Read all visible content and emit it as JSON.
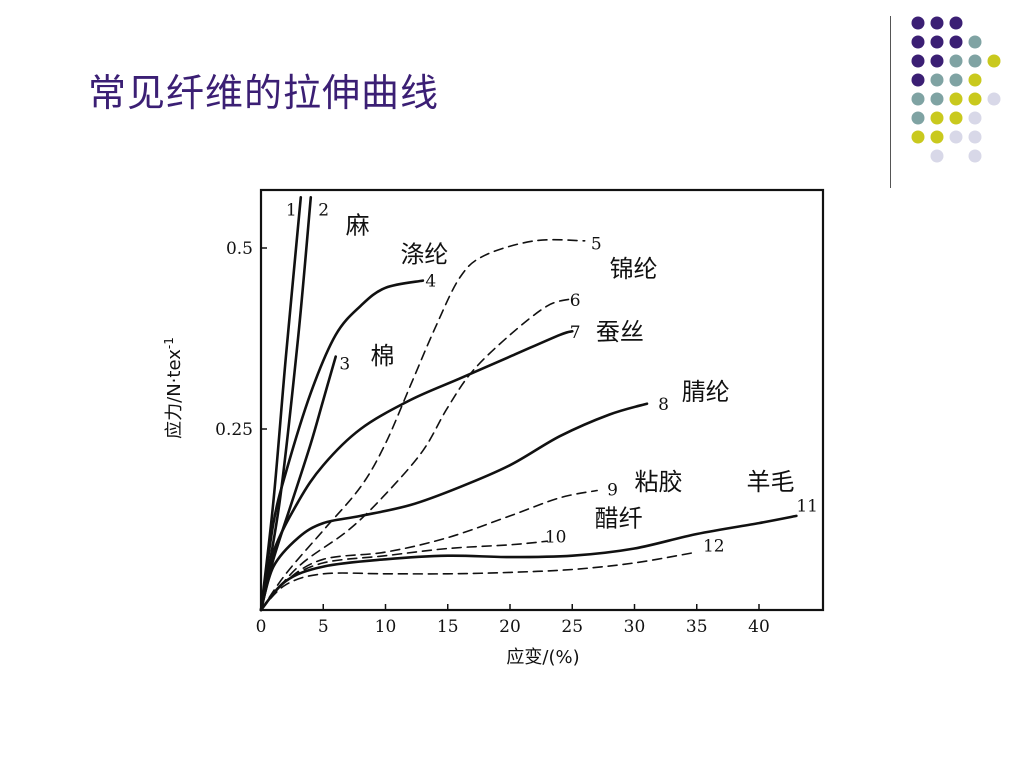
{
  "slide": {
    "title": "常见纤维的拉伸曲线"
  },
  "decor": {
    "dot_colors": [
      "#3b1f74",
      "#7fa3a3",
      "#c9c91e",
      "#d8d8e8"
    ]
  },
  "chart_data": {
    "type": "line",
    "xlabel": "应变/(%)",
    "ylabel": "应力/N·tex",
    "ylabel_sup": "-1",
    "xlim": [
      0,
      45
    ],
    "ylim": [
      0,
      0.57
    ],
    "x_ticks": [
      {
        "value": 0,
        "label": "0"
      },
      {
        "value": 5,
        "label": "5"
      },
      {
        "value": 10,
        "label": "10"
      },
      {
        "value": 15,
        "label": "15"
      },
      {
        "value": 20,
        "label": "20"
      },
      {
        "value": 25,
        "label": "25"
      },
      {
        "value": 30,
        "label": "30"
      },
      {
        "value": 35,
        "label": "35"
      },
      {
        "value": 40,
        "label": "40"
      }
    ],
    "y_ticks": [
      {
        "value": 0.25,
        "label": "0.25"
      },
      {
        "value": 0.5,
        "label": "0.5"
      }
    ],
    "grid": false,
    "series": [
      {
        "id": "1",
        "fiber": "",
        "style": "solid",
        "points": [
          [
            0,
            0
          ],
          [
            1,
            0.15
          ],
          [
            2,
            0.35
          ],
          [
            3.2,
            0.57
          ]
        ]
      },
      {
        "id": "2",
        "fiber": "麻",
        "style": "solid",
        "points": [
          [
            0,
            0
          ],
          [
            1.5,
            0.15
          ],
          [
            3,
            0.38
          ],
          [
            4,
            0.57
          ]
        ]
      },
      {
        "id": "3",
        "fiber": "棉",
        "style": "solid",
        "points": [
          [
            0,
            0
          ],
          [
            1,
            0.07
          ],
          [
            2.5,
            0.15
          ],
          [
            4,
            0.23
          ],
          [
            5,
            0.29
          ],
          [
            6,
            0.35
          ]
        ]
      },
      {
        "id": "4",
        "fiber": "涤纶",
        "style": "solid",
        "points": [
          [
            0,
            0
          ],
          [
            1,
            0.12
          ],
          [
            2,
            0.19
          ],
          [
            4,
            0.3
          ],
          [
            6,
            0.38
          ],
          [
            8,
            0.42
          ],
          [
            10,
            0.445
          ],
          [
            13,
            0.455
          ]
        ]
      },
      {
        "id": "5",
        "fiber": "锦纶",
        "style": "dashed",
        "points": [
          [
            0,
            0
          ],
          [
            2,
            0.05
          ],
          [
            5,
            0.11
          ],
          [
            8,
            0.17
          ],
          [
            10,
            0.23
          ],
          [
            12,
            0.31
          ],
          [
            14,
            0.39
          ],
          [
            16,
            0.46
          ],
          [
            18,
            0.49
          ],
          [
            22,
            0.51
          ],
          [
            26,
            0.51
          ]
        ]
      },
      {
        "id": "6",
        "fiber": "",
        "style": "dashed",
        "points": [
          [
            0,
            0
          ],
          [
            3,
            0.06
          ],
          [
            7,
            0.11
          ],
          [
            10,
            0.16
          ],
          [
            13,
            0.22
          ],
          [
            15,
            0.28
          ],
          [
            17,
            0.33
          ],
          [
            20,
            0.38
          ],
          [
            23,
            0.42
          ],
          [
            25,
            0.43
          ]
        ]
      },
      {
        "id": "7",
        "fiber": "蚕丝",
        "style": "solid",
        "points": [
          [
            0,
            0
          ],
          [
            1,
            0.08
          ],
          [
            3,
            0.15
          ],
          [
            5,
            0.2
          ],
          [
            8,
            0.25
          ],
          [
            12,
            0.29
          ],
          [
            16,
            0.32
          ],
          [
            20,
            0.35
          ],
          [
            24,
            0.38
          ],
          [
            25,
            0.385
          ]
        ]
      },
      {
        "id": "8",
        "fiber": "腈纶",
        "style": "solid",
        "points": [
          [
            0,
            0
          ],
          [
            1,
            0.06
          ],
          [
            3,
            0.1
          ],
          [
            5,
            0.12
          ],
          [
            8,
            0.13
          ],
          [
            12,
            0.145
          ],
          [
            16,
            0.17
          ],
          [
            20,
            0.2
          ],
          [
            24,
            0.24
          ],
          [
            28,
            0.27
          ],
          [
            31,
            0.285
          ]
        ]
      },
      {
        "id": "9",
        "fiber": "粘胶",
        "style": "dashed",
        "points": [
          [
            0,
            0
          ],
          [
            2,
            0.04
          ],
          [
            5,
            0.07
          ],
          [
            10,
            0.08
          ],
          [
            15,
            0.1
          ],
          [
            20,
            0.13
          ],
          [
            24,
            0.155
          ],
          [
            27,
            0.165
          ]
        ]
      },
      {
        "id": "10",
        "fiber": "醋纤",
        "style": "dashed",
        "points": [
          [
            0,
            0
          ],
          [
            2,
            0.04
          ],
          [
            5,
            0.065
          ],
          [
            10,
            0.075
          ],
          [
            15,
            0.085
          ],
          [
            20,
            0.09
          ],
          [
            23,
            0.095
          ]
        ]
      },
      {
        "id": "11",
        "fiber": "羊毛",
        "style": "solid",
        "points": [
          [
            0,
            0
          ],
          [
            2,
            0.04
          ],
          [
            5,
            0.06
          ],
          [
            10,
            0.07
          ],
          [
            15,
            0.075
          ],
          [
            20,
            0.073
          ],
          [
            25,
            0.075
          ],
          [
            30,
            0.085
          ],
          [
            35,
            0.105
          ],
          [
            40,
            0.12
          ],
          [
            43,
            0.13
          ]
        ]
      },
      {
        "id": "12",
        "fiber": "",
        "style": "dashed",
        "points": [
          [
            0,
            0
          ],
          [
            2,
            0.035
          ],
          [
            5,
            0.05
          ],
          [
            10,
            0.05
          ],
          [
            15,
            0.05
          ],
          [
            20,
            0.052
          ],
          [
            25,
            0.056
          ],
          [
            30,
            0.065
          ],
          [
            35,
            0.08
          ]
        ]
      }
    ],
    "labels": [
      {
        "text": "1",
        "kind": "num",
        "x": 2.0,
        "y": 0.545
      },
      {
        "text": "2",
        "kind": "num",
        "x": 4.6,
        "y": 0.545
      },
      {
        "text": "麻",
        "kind": "name",
        "x": 6.8,
        "y": 0.52
      },
      {
        "text": "涤纶",
        "kind": "name",
        "x": 11.2,
        "y": 0.48
      },
      {
        "text": "4",
        "kind": "num",
        "x": 13.2,
        "y": 0.447
      },
      {
        "text": "5",
        "kind": "num",
        "x": 26.5,
        "y": 0.498
      },
      {
        "text": "锦纶",
        "kind": "name",
        "x": 28.0,
        "y": 0.46
      },
      {
        "text": "6",
        "kind": "num",
        "x": 24.8,
        "y": 0.42
      },
      {
        "text": "7",
        "kind": "num",
        "x": 24.8,
        "y": 0.376
      },
      {
        "text": "蚕丝",
        "kind": "name",
        "x": 26.9,
        "y": 0.373
      },
      {
        "text": "3",
        "kind": "num",
        "x": 6.3,
        "y": 0.332
      },
      {
        "text": "棉",
        "kind": "name",
        "x": 8.8,
        "y": 0.34
      },
      {
        "text": "8",
        "kind": "num",
        "x": 31.9,
        "y": 0.276
      },
      {
        "text": "腈纶",
        "kind": "name",
        "x": 33.8,
        "y": 0.29
      },
      {
        "text": "9",
        "kind": "num",
        "x": 27.8,
        "y": 0.158
      },
      {
        "text": "粘胶",
        "kind": "name",
        "x": 30.0,
        "y": 0.166
      },
      {
        "text": "羊毛",
        "kind": "name",
        "x": 39.0,
        "y": 0.166
      },
      {
        "text": "11",
        "kind": "num",
        "x": 43.0,
        "y": 0.136
      },
      {
        "text": "醋纤",
        "kind": "name",
        "x": 26.8,
        "y": 0.115
      },
      {
        "text": "10",
        "kind": "num",
        "x": 22.8,
        "y": 0.093
      },
      {
        "text": "12",
        "kind": "num",
        "x": 35.5,
        "y": 0.081
      }
    ]
  }
}
